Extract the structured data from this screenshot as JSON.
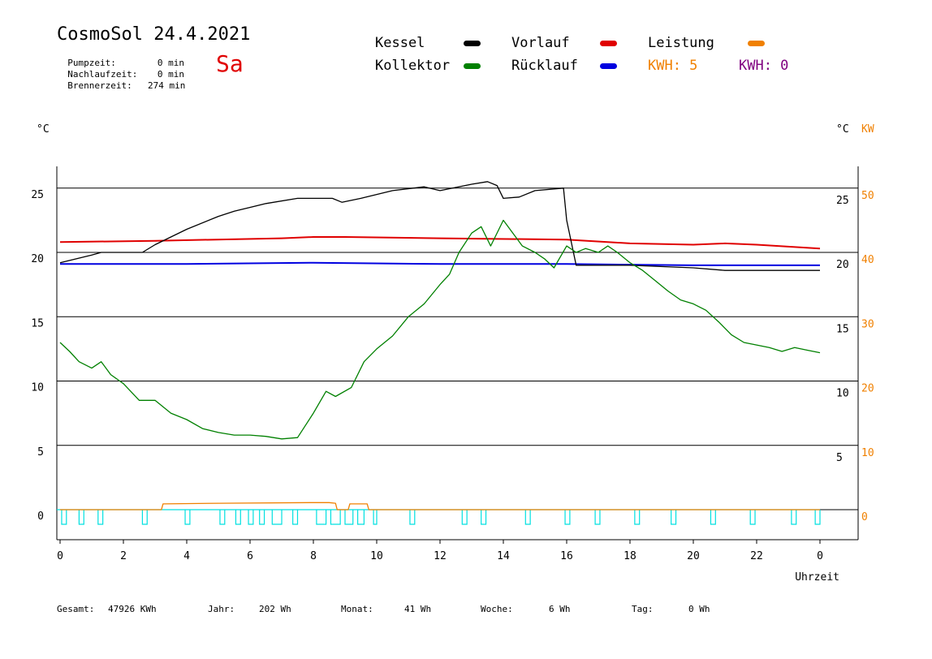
{
  "header": {
    "title": "CosmoSol 24.4.2021",
    "weekday": "Sa",
    "stats": [
      {
        "label": "Pumpzeit:",
        "value": "0 min"
      },
      {
        "label": "Nachlaufzeit:",
        "value": "0 min"
      },
      {
        "label": "Brennerzeit:",
        "value": "274 min"
      }
    ]
  },
  "legend": {
    "kessel": "Kessel",
    "kollektor": "Kollektor",
    "vorlauf": "Vorlauf",
    "ruecklauf": "Rücklauf",
    "leistung": "Leistung",
    "kwh_a": "KWH: 5",
    "kwh_b": "KWH: 0"
  },
  "units": {
    "left": "°C",
    "right_c": "°C",
    "right_kw": "KW"
  },
  "footer": {
    "gesamt_label": "Gesamt:",
    "gesamt_value": "47926 KWh",
    "jahr_label": "Jahr:",
    "jahr_value": "202 Wh",
    "monat_label": "Monat:",
    "monat_value": "41 Wh",
    "woche_label": "Woche:",
    "woche_value": "6 Wh",
    "tag_label": "Tag:",
    "tag_value": "0 Wh"
  },
  "colors": {
    "kessel": "#000000",
    "kollektor": "#008000",
    "vorlauf": "#e00000",
    "ruecklauf": "#0000e0",
    "leistung": "#f08000",
    "kwh_b": "#800080",
    "pump": "#00e0e0"
  },
  "chart_data": {
    "type": "line",
    "xlabel": "Uhrzeit",
    "x_ticks": [
      "0",
      "2",
      "4",
      "6",
      "8",
      "10",
      "12",
      "14",
      "16",
      "18",
      "20",
      "22",
      "0"
    ],
    "x_range": [
      0,
      24
    ],
    "left_ticks": [
      "0",
      "5",
      "10",
      "15",
      "20",
      "25"
    ],
    "right_ticks_c": [
      "5",
      "10",
      "15",
      "20",
      "25"
    ],
    "right_ticks_kw": [
      "0",
      "10",
      "20",
      "30",
      "40",
      "50"
    ],
    "ylim": [
      -2,
      27
    ],
    "y2lim_kw": [
      -4,
      54
    ],
    "grid": "horizontal",
    "series": [
      {
        "name": "Kessel",
        "x": [
          0,
          1,
          1.3,
          2.6,
          3,
          4,
          5,
          5.5,
          6.5,
          7.5,
          8.6,
          8.9,
          9.5,
          10.5,
          11.5,
          12,
          13,
          13.5,
          13.8,
          14,
          14.5,
          15,
          15.9,
          16,
          16.3,
          18,
          20,
          21,
          22,
          23,
          24
        ],
        "y": [
          19.2,
          19.8,
          20.0,
          20.0,
          20.6,
          21.8,
          22.8,
          23.2,
          23.8,
          24.2,
          24.2,
          23.9,
          24.2,
          24.8,
          25.1,
          24.8,
          25.3,
          25.5,
          25.2,
          24.2,
          24.3,
          24.8,
          25.0,
          22.5,
          19.0,
          19.0,
          18.8,
          18.6,
          18.6,
          18.6,
          18.6
        ]
      },
      {
        "name": "Kollektor",
        "x": [
          0,
          0.3,
          0.6,
          1,
          1.3,
          1.6,
          2,
          2.5,
          3,
          3.5,
          4,
          4.5,
          5,
          5.5,
          6,
          6.5,
          7,
          7.5,
          8,
          8.4,
          8.7,
          9.2,
          9.6,
          10,
          10.5,
          11,
          11.5,
          12,
          12.3,
          12.6,
          13,
          13.3,
          13.6,
          14,
          14.3,
          14.6,
          15,
          15.3,
          15.6,
          16,
          16.3,
          16.6,
          17,
          17.3,
          17.6,
          18,
          18.4,
          18.8,
          19.2,
          19.6,
          20,
          20.4,
          20.8,
          21.2,
          21.6,
          22,
          22.4,
          22.8,
          23.2,
          23.6,
          24
        ],
        "y": [
          13.0,
          12.3,
          11.5,
          11.0,
          11.5,
          10.5,
          9.8,
          8.5,
          8.5,
          7.5,
          7.0,
          6.3,
          6.0,
          5.8,
          5.8,
          5.7,
          5.5,
          5.6,
          7.5,
          9.2,
          8.8,
          9.5,
          11.5,
          12.5,
          13.5,
          15.0,
          16.0,
          17.5,
          18.3,
          20.0,
          21.5,
          22.0,
          20.5,
          22.5,
          21.5,
          20.5,
          20.0,
          19.5,
          18.8,
          20.5,
          20.0,
          20.3,
          20.0,
          20.5,
          20.0,
          19.2,
          18.6,
          17.8,
          17.0,
          16.3,
          16.0,
          15.5,
          14.6,
          13.6,
          13.0,
          12.8,
          12.6,
          12.3,
          12.6,
          12.4,
          12.2
        ]
      },
      {
        "name": "Vorlauf",
        "x": [
          0,
          3,
          7,
          8,
          9,
          12,
          16,
          18,
          20,
          21,
          22,
          24
        ],
        "y": [
          20.8,
          20.9,
          21.1,
          21.2,
          21.2,
          21.1,
          21.0,
          20.7,
          20.6,
          20.7,
          20.6,
          20.3
        ]
      },
      {
        "name": "Rücklauf",
        "x": [
          0,
          4,
          8,
          12,
          16,
          20,
          24
        ],
        "y": [
          19.1,
          19.1,
          19.2,
          19.1,
          19.1,
          19.0,
          19.0
        ]
      },
      {
        "name": "Leistung",
        "x": [
          0,
          3.2,
          3.25,
          5,
          8,
          8.5,
          8.7,
          8.75,
          9.1,
          9.15,
          9.7,
          9.75,
          24
        ],
        "y": [
          0,
          0,
          0.9,
          1.0,
          1.1,
          1.1,
          1.0,
          0,
          0,
          0.9,
          0.9,
          0,
          0
        ]
      }
    ],
    "pump_cycles": [
      [
        0.05,
        0.2
      ],
      [
        0.6,
        0.75
      ],
      [
        1.2,
        1.35
      ],
      [
        2.6,
        2.75
      ],
      [
        3.95,
        4.1
      ],
      [
        5.05,
        5.2
      ],
      [
        5.55,
        5.7
      ],
      [
        5.95,
        6.1
      ],
      [
        6.3,
        6.45
      ],
      [
        6.7,
        7.0
      ],
      [
        7.35,
        7.5
      ],
      [
        8.1,
        8.4
      ],
      [
        8.55,
        8.85
      ],
      [
        9.0,
        9.25
      ],
      [
        9.4,
        9.6
      ],
      [
        9.9,
        10.0
      ],
      [
        11.05,
        11.2
      ],
      [
        12.7,
        12.85
      ],
      [
        13.3,
        13.45
      ],
      [
        14.7,
        14.85
      ],
      [
        15.95,
        16.1
      ],
      [
        16.9,
        17.05
      ],
      [
        18.15,
        18.3
      ],
      [
        19.3,
        19.45
      ],
      [
        20.55,
        20.7
      ],
      [
        21.8,
        21.95
      ],
      [
        23.1,
        23.25
      ],
      [
        23.85,
        24.0
      ]
    ]
  }
}
